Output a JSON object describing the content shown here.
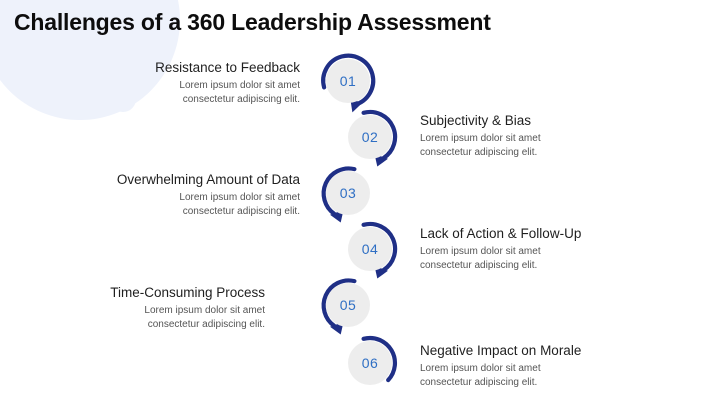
{
  "title": "Challenges of a 360 Leadership Assessment",
  "colors": {
    "arc": "#1f2f86",
    "number": "#2f6fc4",
    "circle": "#ededed",
    "decor": "#eef2fb"
  },
  "steps": [
    {
      "number": "01",
      "heading": "Resistance to Feedback",
      "desc_line1": "Lorem ipsum dolor sit amet",
      "desc_line2": "consectetur adipiscing elit."
    },
    {
      "number": "02",
      "heading": "Subjectivity & Bias",
      "desc_line1": "Lorem ipsum dolor sit amet",
      "desc_line2": "consectetur adipiscing elit."
    },
    {
      "number": "03",
      "heading": "Overwhelming Amount of Data",
      "desc_line1": "Lorem ipsum dolor sit amet",
      "desc_line2": "consectetur adipiscing elit."
    },
    {
      "number": "04",
      "heading": "Lack of Action & Follow-Up",
      "desc_line1": "Lorem ipsum dolor sit amet",
      "desc_line2": "consectetur adipiscing elit."
    },
    {
      "number": "05",
      "heading": "Time-Consuming Process",
      "desc_line1": "Lorem ipsum dolor sit amet",
      "desc_line2": "consectetur adipiscing elit."
    },
    {
      "number": "06",
      "heading": "Negative Impact on Morale",
      "desc_line1": "Lorem ipsum dolor sit amet",
      "desc_line2": "consectetur adipiscing elit."
    }
  ]
}
